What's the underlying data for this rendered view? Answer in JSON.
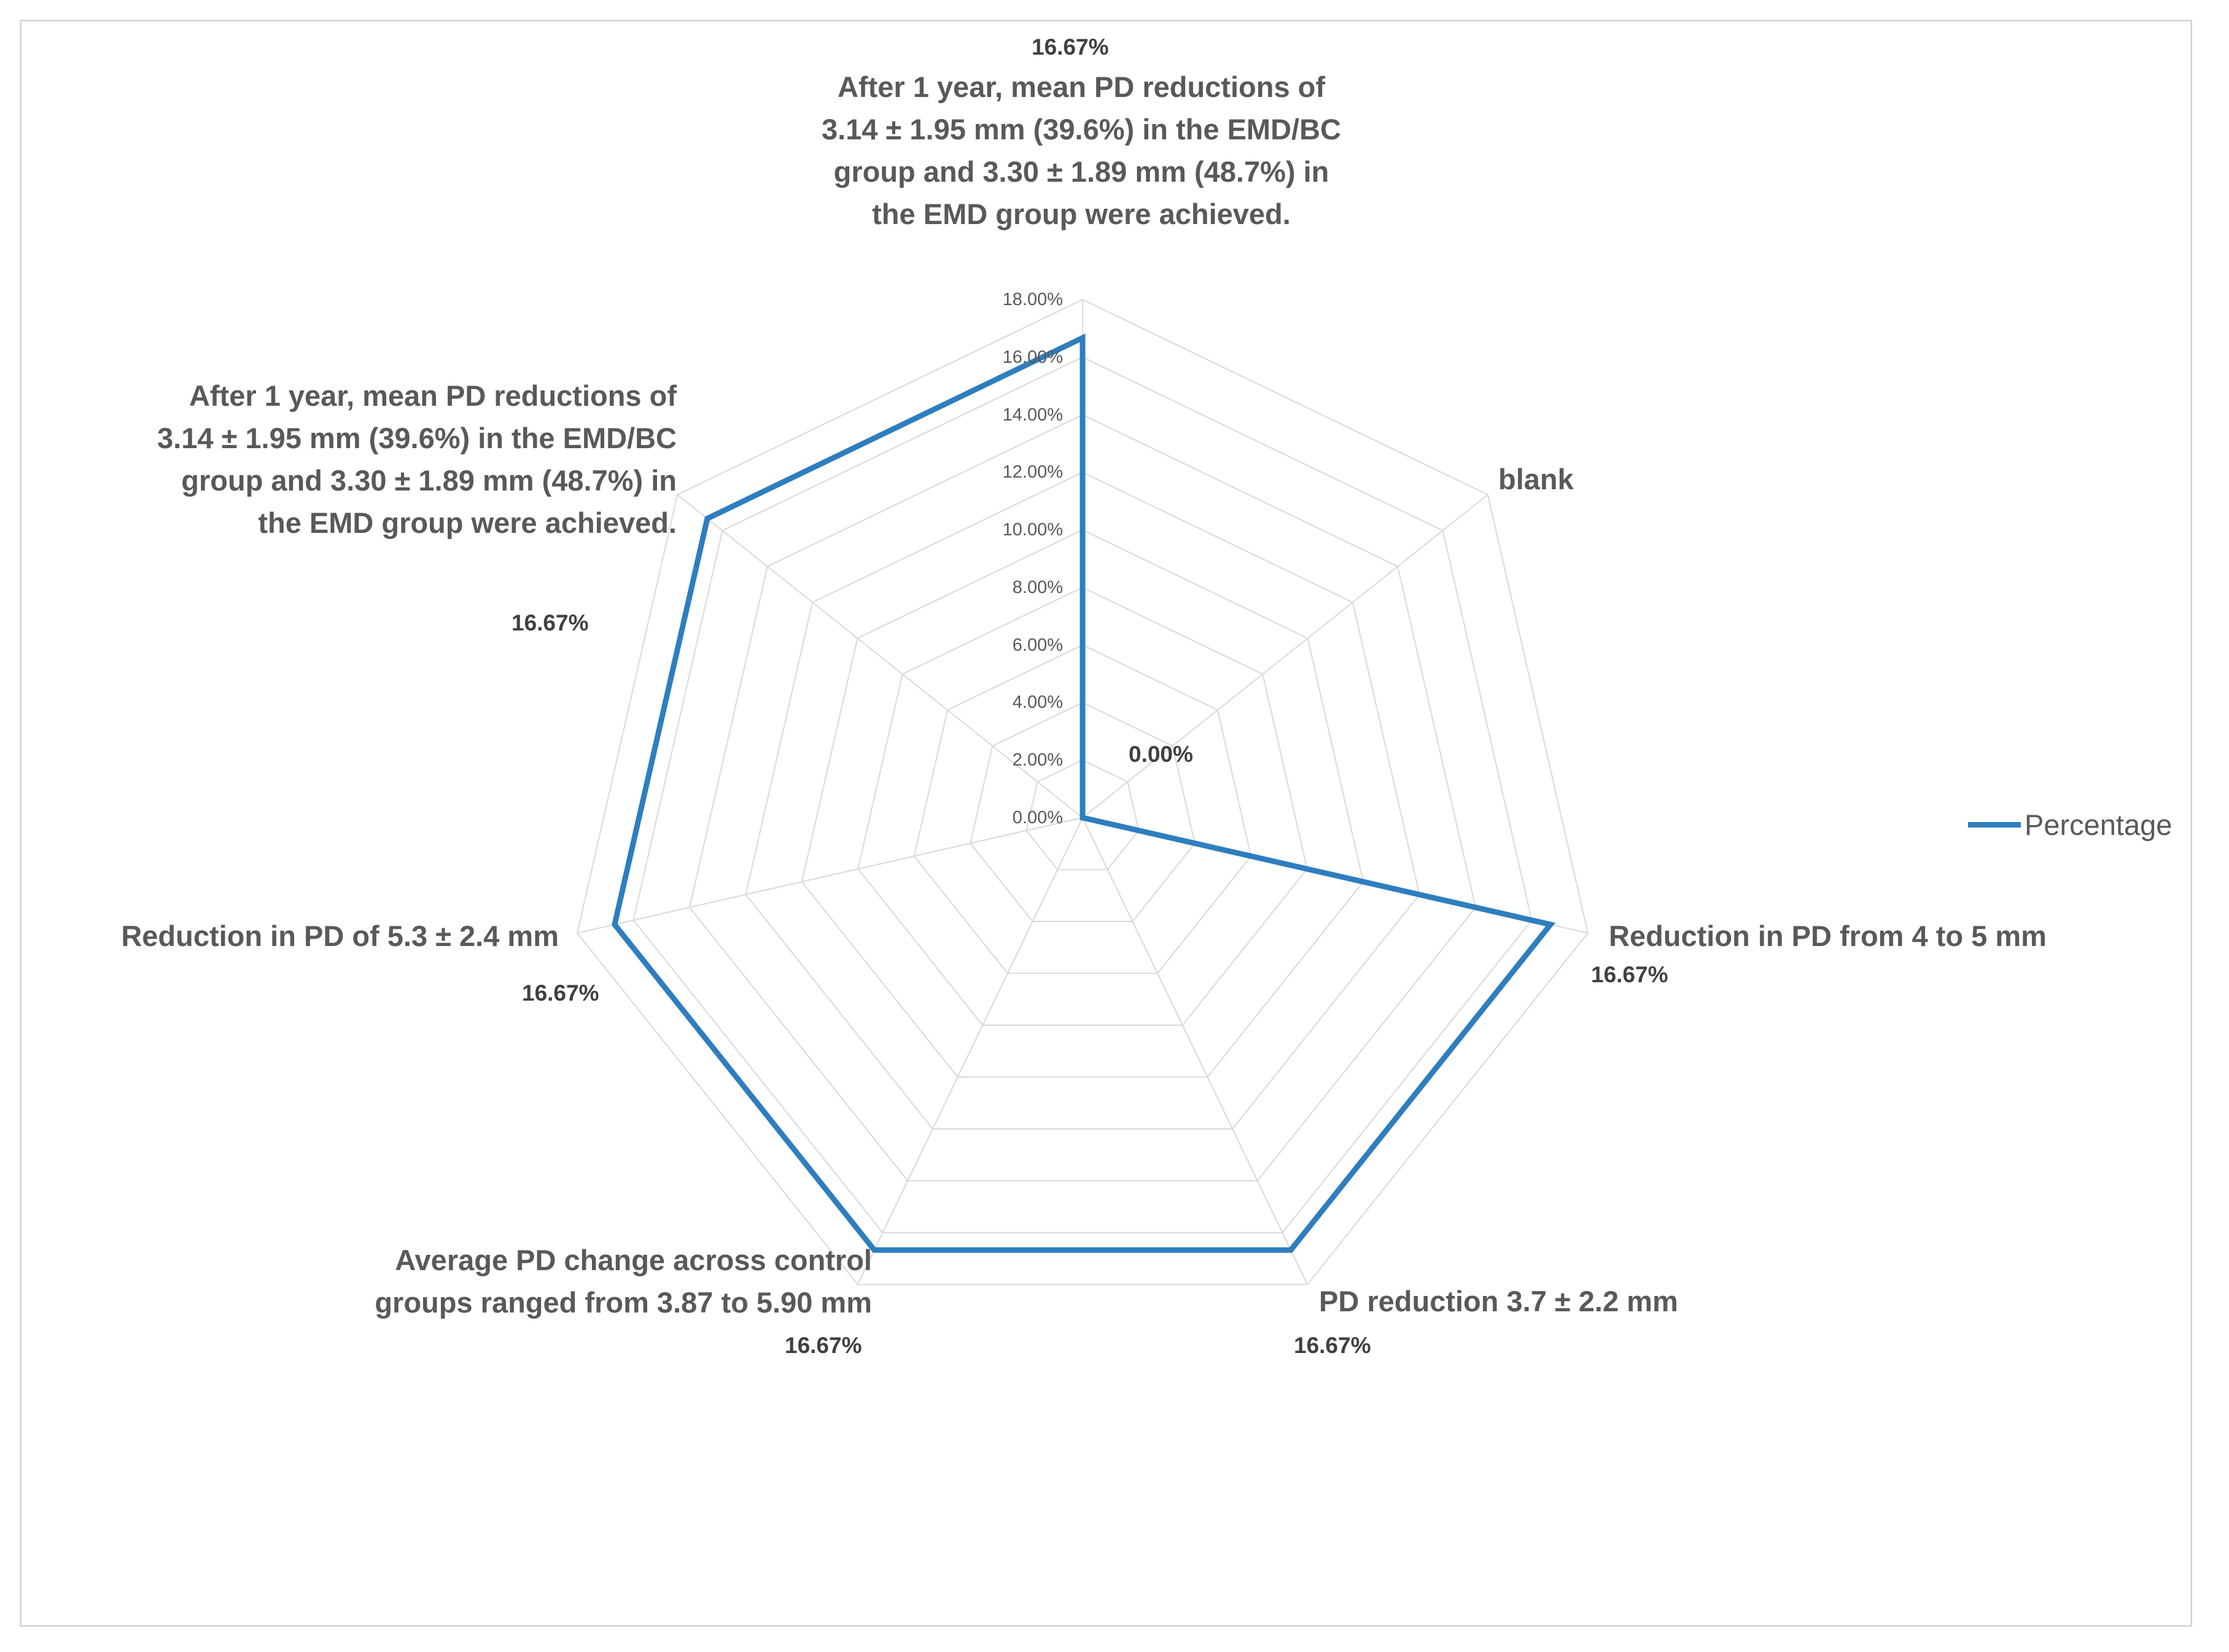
{
  "chart_data": {
    "type": "radar",
    "categories": [
      "After 1 year, mean PD reductions of 3.14 ± 1.95 mm (39.6%) in the EMD/BC group and 3.30 ± 1.89 mm (48.7%) in the EMD group were achieved.",
      "blank",
      "Reduction in PD from 4 to 5 mm",
      "PD reduction 3.7 ± 2.2 mm",
      "Average PD change across control groups ranged from 3.87 to 5.90 mm",
      "Reduction in PD of 5.3 ± 2.4 mm",
      "After 1 year, mean PD reductions of 3.14 ± 1.95 mm (39.6%) in the EMD/BC group and 3.30 ± 1.89 mm (48.7%) in the EMD group were achieved."
    ],
    "series": [
      {
        "name": "Percentage",
        "values": [
          16.67,
          0,
          16.67,
          16.67,
          16.67,
          16.67,
          16.67
        ],
        "data_labels": [
          "16.67%",
          "0.00%",
          "16.67%",
          "16.67%",
          "16.67%",
          "16.67%",
          "16.67%"
        ]
      }
    ],
    "radial_ticks": [
      "0.00%",
      "2.00%",
      "4.00%",
      "6.00%",
      "8.00%",
      "10.00%",
      "12.00%",
      "14.00%",
      "16.00%",
      "18.00%"
    ],
    "rlim": [
      0,
      18
    ],
    "grid": true,
    "legend_position": "right",
    "colors": {
      "series": "#2e7ebf",
      "grid": "#d9d9d9",
      "text": "#595959"
    }
  }
}
